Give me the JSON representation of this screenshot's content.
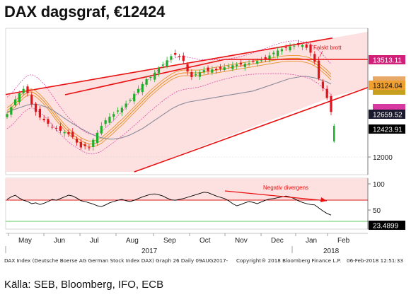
{
  "title": "DAX dagsgraf, €12424",
  "source": "Källa: SEB, Bloomberg, IFO, ECB",
  "footer": {
    "left": "DAX Index (Deutsche Boerse AG German Stock Index DAX) Graph 26  Daily 09AUG2017-",
    "center": "Copyright® 2018 Bloomberg Finance L.P.",
    "right": "06-Feb-2018 12:51:33"
  },
  "colors": {
    "channel_fill": "#fde0e0",
    "channel_line": "#e81010",
    "price_up": "#1fae2a",
    "price_down": "#e0121a",
    "ma_orange": "#e8922a",
    "ma_grey": "#8a8a9a",
    "bollinger": "#d63aa0",
    "rsi_line": "#000000",
    "rsi_band": "#d81818",
    "rsi_lower": "#22bb22"
  },
  "chart_data": [
    {
      "type": "candlestick",
      "title": "",
      "x_tick_labels": [
        "May",
        "Jun",
        "Jul",
        "Aug",
        "Sep",
        "Oct",
        "Nov",
        "Dec",
        "Jan",
        "Feb"
      ],
      "year_labels": [
        "2017",
        "2018"
      ],
      "y_tick_labels": [
        "12000"
      ],
      "ylim": [
        11600,
        13700
      ],
      "annotations": [
        "Falskt brott"
      ],
      "price_labels": [
        {
          "value": "13513.11",
          "color": "#d0207a",
          "text_color": "#ffffff"
        },
        {
          "value": "13124.04",
          "color": "#f0a030",
          "text_color": "#000000"
        },
        {
          "value": "12659.52",
          "color": "#1a1a2e",
          "text_color": "#ffffff"
        },
        {
          "value": "12423.91",
          "color": "#000000",
          "text_color": "#ffffff"
        }
      ],
      "series": [
        {
          "values": [
            12470,
            12570,
            12680,
            12770,
            12830,
            12770,
            12610,
            12500,
            12420,
            12380,
            12330,
            12280,
            12270,
            12230,
            12210,
            12180,
            12140,
            12060,
            11990,
            12010,
            11980,
            12100,
            12200,
            12300,
            12380,
            12430,
            12470,
            12520,
            12560,
            12620,
            12670,
            12760,
            12830,
            12900,
            12970,
            13000,
            13060,
            13130,
            13180,
            13240,
            13300,
            13320,
            13290,
            13230,
            13080,
            13000,
            13040,
            13070,
            13100,
            13090,
            13110,
            13100,
            13120,
            13140,
            13160,
            13170,
            13180,
            13180,
            13190,
            13200,
            13220,
            13230,
            13240,
            13260,
            13310,
            13350,
            13380,
            13400,
            13420,
            13440,
            13450,
            13460,
            13460,
            13420,
            13350,
            13220,
            12980,
            12840,
            12700,
            12500
          ]
        },
        {
          "values": [
            12520,
            12560,
            12620,
            12680,
            12740,
            12780,
            12790,
            12760,
            12710,
            12650,
            12580,
            12500,
            12420,
            12350,
            12280,
            12220,
            12170,
            12130,
            12090,
            12060,
            12040,
            12040,
            12060,
            12090,
            12140,
            12190,
            12240,
            12300,
            12350,
            12410,
            12470,
            12530,
            12590,
            12650,
            12710,
            12770,
            12820,
            12870,
            12920,
            12960,
            13000,
            13030,
            13050,
            13060,
            13060,
            13060,
            13060,
            13060,
            13070,
            13080,
            13090,
            13100,
            13110,
            13120,
            13130,
            13140,
            13150,
            13160,
            13170,
            13180,
            13190,
            13200,
            13210,
            13220,
            13230,
            13240,
            13250,
            13260,
            13265,
            13270,
            13270,
            13270,
            13260,
            13250,
            13230,
            13200,
            13160,
            13110,
            13060,
            13000
          ]
        },
        {
          "values": [
            12500,
            12520,
            12540,
            12560,
            12580,
            12600,
            12610,
            12610,
            12600,
            12580,
            12560,
            12530,
            12490,
            12450,
            12410,
            12370,
            12330,
            12300,
            12260,
            12230,
            12200,
            12170,
            12150,
            12130,
            12120,
            12110,
            12110,
            12120,
            12130,
            12150,
            12170,
            12200,
            12230,
            12260,
            12300,
            12340,
            12380,
            12420,
            12460,
            12500,
            12540,
            12570,
            12600,
            12620,
            12640,
            12650,
            12660,
            12670,
            12680,
            12690,
            12700,
            12710,
            12720,
            12730,
            12740,
            12750,
            12760,
            12770,
            12780,
            12790,
            12800,
            12820,
            12840,
            12860,
            12880,
            12900,
            12920,
            12940,
            12960,
            12980,
            12990,
            13000,
            13010,
            13010,
            13000,
            12990,
            12970,
            12950,
            12930,
            12900
          ]
        }
      ],
      "channel": {
        "upper_start": 12750,
        "upper_end": 13560,
        "lower_start": 11640,
        "lower_end": 12720,
        "breakout_level": 13513
      }
    },
    {
      "type": "line",
      "title": "",
      "annotations": [
        "Negativ divergens"
      ],
      "y_tick_labels": [
        "100",
        "50"
      ],
      "ylim": [
        0,
        100
      ],
      "overbought": 70,
      "oversold": 30,
      "last_value": "23.4899",
      "series": [
        {
          "values": [
            60,
            66,
            70,
            63,
            58,
            55,
            50,
            52,
            48,
            51,
            55,
            60,
            58,
            62,
            66,
            70,
            68,
            63,
            57,
            55,
            52,
            49,
            45,
            43,
            47,
            52,
            55,
            58,
            60,
            57,
            55,
            58,
            62,
            66,
            69,
            72,
            73,
            71,
            68,
            63,
            59,
            58,
            60,
            62,
            65,
            68,
            71,
            74,
            77,
            76,
            72,
            68,
            65,
            62,
            57,
            50,
            45,
            48,
            52,
            55,
            53,
            50,
            54,
            58,
            61,
            62,
            64,
            66,
            68,
            66,
            62,
            57,
            53,
            50,
            48,
            47,
            40,
            33,
            27,
            23
          ]
        }
      ]
    }
  ]
}
